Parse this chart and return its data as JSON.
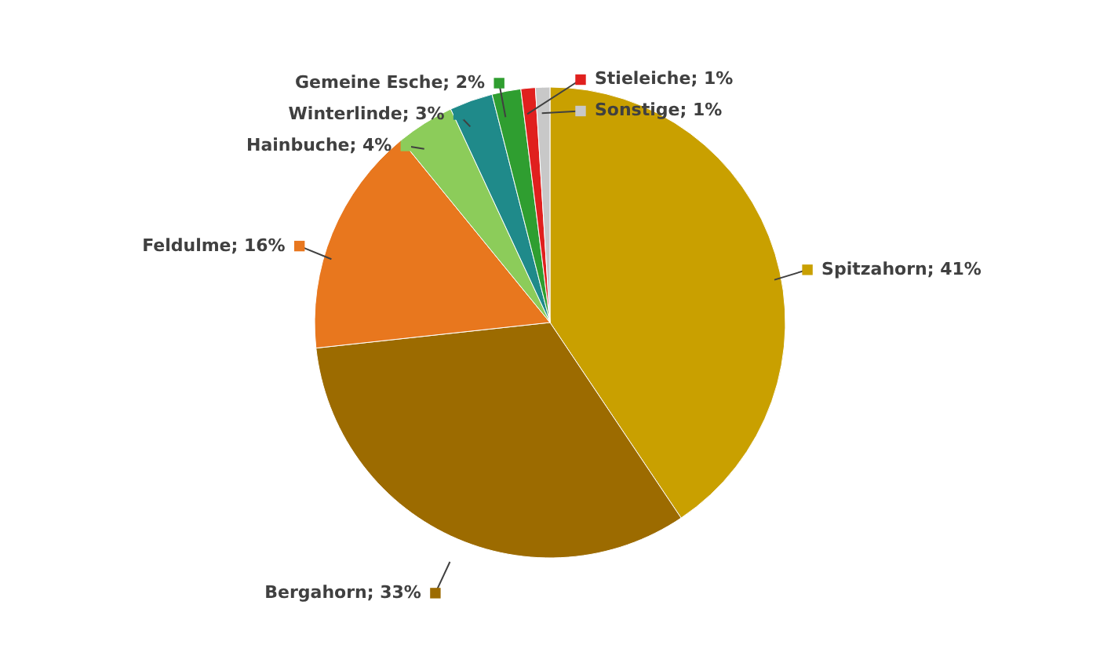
{
  "chart_data": {
    "type": "pie",
    "categories": [
      "Spitzahorn",
      "Bergahorn",
      "Feldulme",
      "Hainbuche",
      "Winterlinde",
      "Gemeine Esche",
      "Stieleiche",
      "Sonstige"
    ],
    "values": [
      41,
      33,
      16,
      4,
      3,
      2,
      1,
      1
    ],
    "colors": [
      "#c9a000",
      "#9c6b00",
      "#e8771e",
      "#8ccc5a",
      "#1f8a8a",
      "#2f9e30",
      "#e0201e",
      "#c8c8c8"
    ],
    "value_labels": [
      "41%",
      "33%",
      "16%",
      "4%",
      "3%",
      "2%",
      "1%",
      "1%"
    ],
    "legend": "left"
  }
}
